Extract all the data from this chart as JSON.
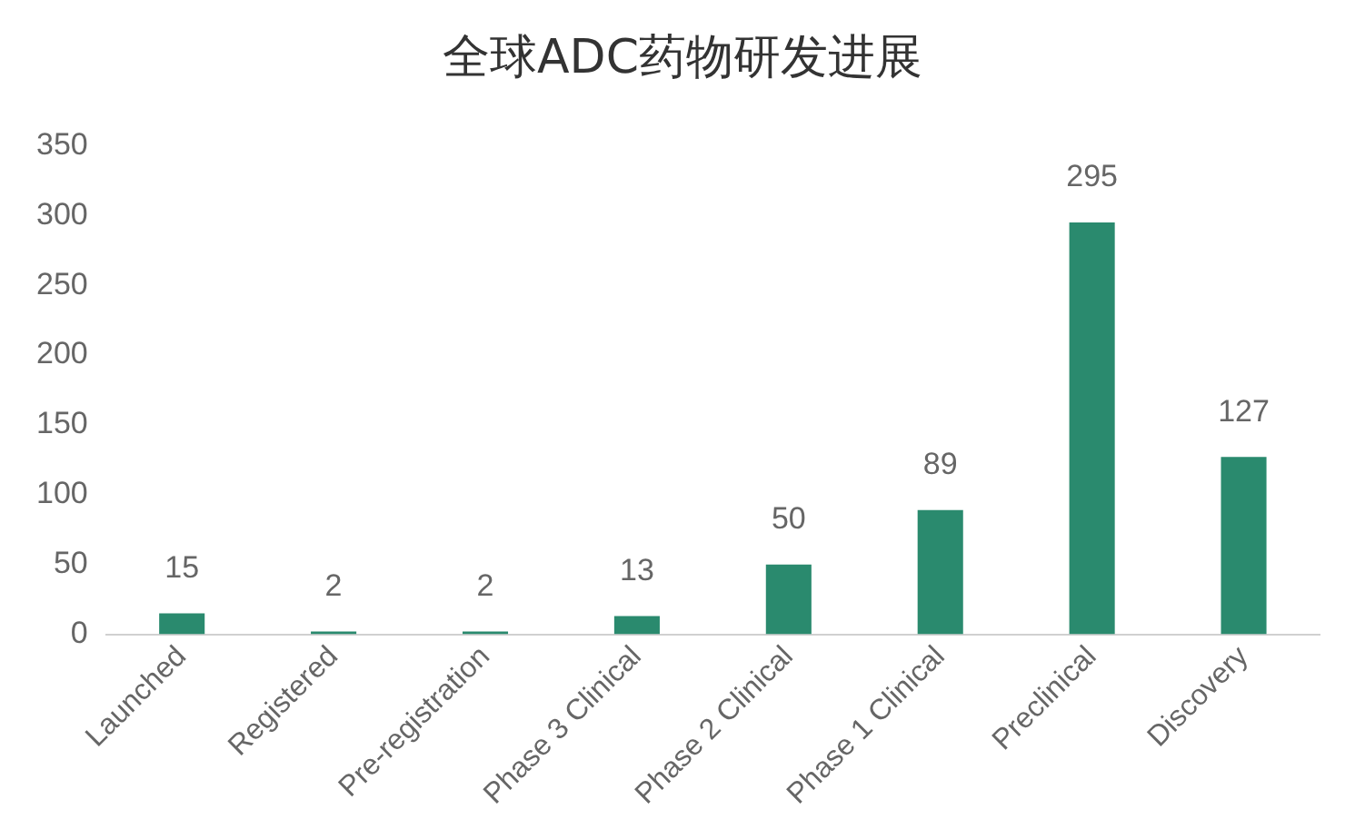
{
  "chart_data": {
    "type": "bar",
    "title": "全球ADC药物研发进展",
    "categories": [
      "Launched",
      "Registered",
      "Pre-registration",
      "Phase 3 Clinical",
      "Phase 2 Clinical",
      "Phase 1 Clinical",
      "Preclinical",
      "Discovery"
    ],
    "values": [
      15,
      2,
      2,
      13,
      50,
      89,
      295,
      127
    ],
    "color": "#2a8a6e",
    "ylim": [
      0,
      350
    ],
    "yticks": [
      0,
      50,
      100,
      150,
      200,
      250,
      300,
      350
    ],
    "grid": false,
    "data_labels": true,
    "legend": false
  }
}
